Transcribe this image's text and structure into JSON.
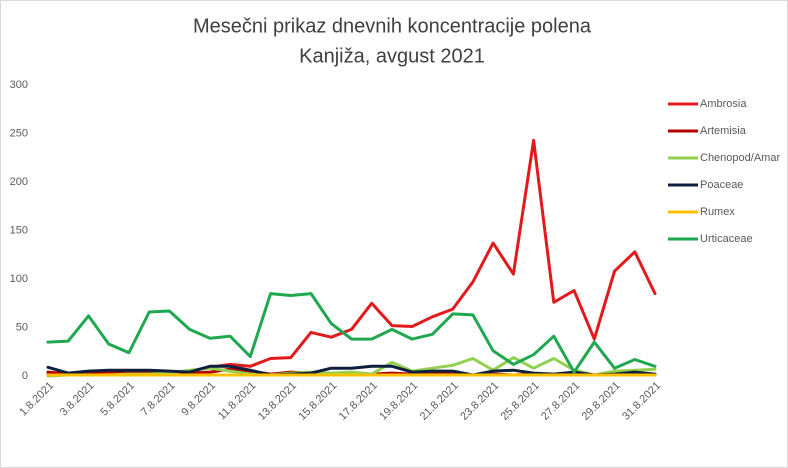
{
  "chart_data": {
    "type": "line",
    "title": "Mesečni prikaz dnevnih koncentracije polena",
    "subtitle": "Kanjiža, avgust 2021",
    "categories": [
      "1.8.2021",
      null,
      "3.8.2021",
      null,
      "5.8.2021",
      null,
      "7.8.2021",
      null,
      "9.8.2021",
      null,
      "11.8.2021",
      null,
      "13.8.2021",
      null,
      "15.8.2021",
      null,
      "17.8.2021",
      null,
      "19.8.2021",
      null,
      "21.8.2021",
      null,
      "23.8.2021",
      null,
      "25.8.2021",
      null,
      "27.8.2021",
      null,
      "29.8.2021",
      null,
      "31.8.2021"
    ],
    "series": [
      {
        "name": "Ambrosia",
        "color": "#e31a1c",
        "values": [
          2,
          1,
          2,
          3,
          3,
          3,
          3,
          5,
          9,
          12,
          10,
          18,
          19,
          45,
          40,
          48,
          75,
          52,
          51,
          61,
          69,
          97,
          137,
          105,
          243,
          76,
          88,
          38,
          108,
          128,
          85
        ]
      },
      {
        "name": "Artemisia",
        "color": "#b00000",
        "values": [
          4,
          2,
          3,
          5,
          4,
          5,
          4,
          3,
          4,
          7,
          5,
          2,
          4,
          3,
          2,
          3,
          2,
          3,
          2,
          3,
          2,
          1,
          2,
          1,
          2,
          1,
          1,
          1,
          1,
          1,
          1
        ]
      },
      {
        "name": "Chenopod/Amar",
        "color": "#92d050",
        "values": [
          0,
          1,
          1,
          1,
          2,
          2,
          3,
          6,
          8,
          5,
          2,
          1,
          3,
          4,
          3,
          4,
          2,
          14,
          5,
          8,
          11,
          18,
          6,
          19,
          8,
          18,
          6,
          1,
          5,
          6,
          7
        ]
      },
      {
        "name": "Poaceae",
        "color": "#0d1f3c",
        "values": [
          9,
          3,
          5,
          6,
          6,
          6,
          5,
          4,
          10,
          10,
          6,
          1,
          2,
          3,
          8,
          8,
          10,
          10,
          4,
          5,
          5,
          1,
          5,
          6,
          3,
          2,
          4,
          1,
          2,
          4,
          2
        ]
      },
      {
        "name": "Rumex",
        "color": "#ffc000",
        "values": [
          1,
          1,
          1,
          1,
          1,
          1,
          1,
          1,
          1,
          1,
          1,
          1,
          1,
          1,
          1,
          1,
          1,
          1,
          1,
          1,
          1,
          1,
          1,
          1,
          1,
          1,
          1,
          1,
          1,
          1,
          1
        ]
      },
      {
        "name": "Urticaceae",
        "color": "#1fa84f",
        "values": [
          35,
          36,
          62,
          33,
          24,
          66,
          67,
          48,
          39,
          41,
          20,
          85,
          83,
          85,
          54,
          38,
          38,
          48,
          38,
          43,
          64,
          63,
          26,
          12,
          22,
          41,
          4,
          35,
          8,
          17,
          10
        ]
      }
    ],
    "ylim": [
      0,
      300
    ],
    "yticks": [
      0,
      50,
      100,
      150,
      200,
      250,
      300
    ],
    "legend": "right",
    "grid": false
  }
}
